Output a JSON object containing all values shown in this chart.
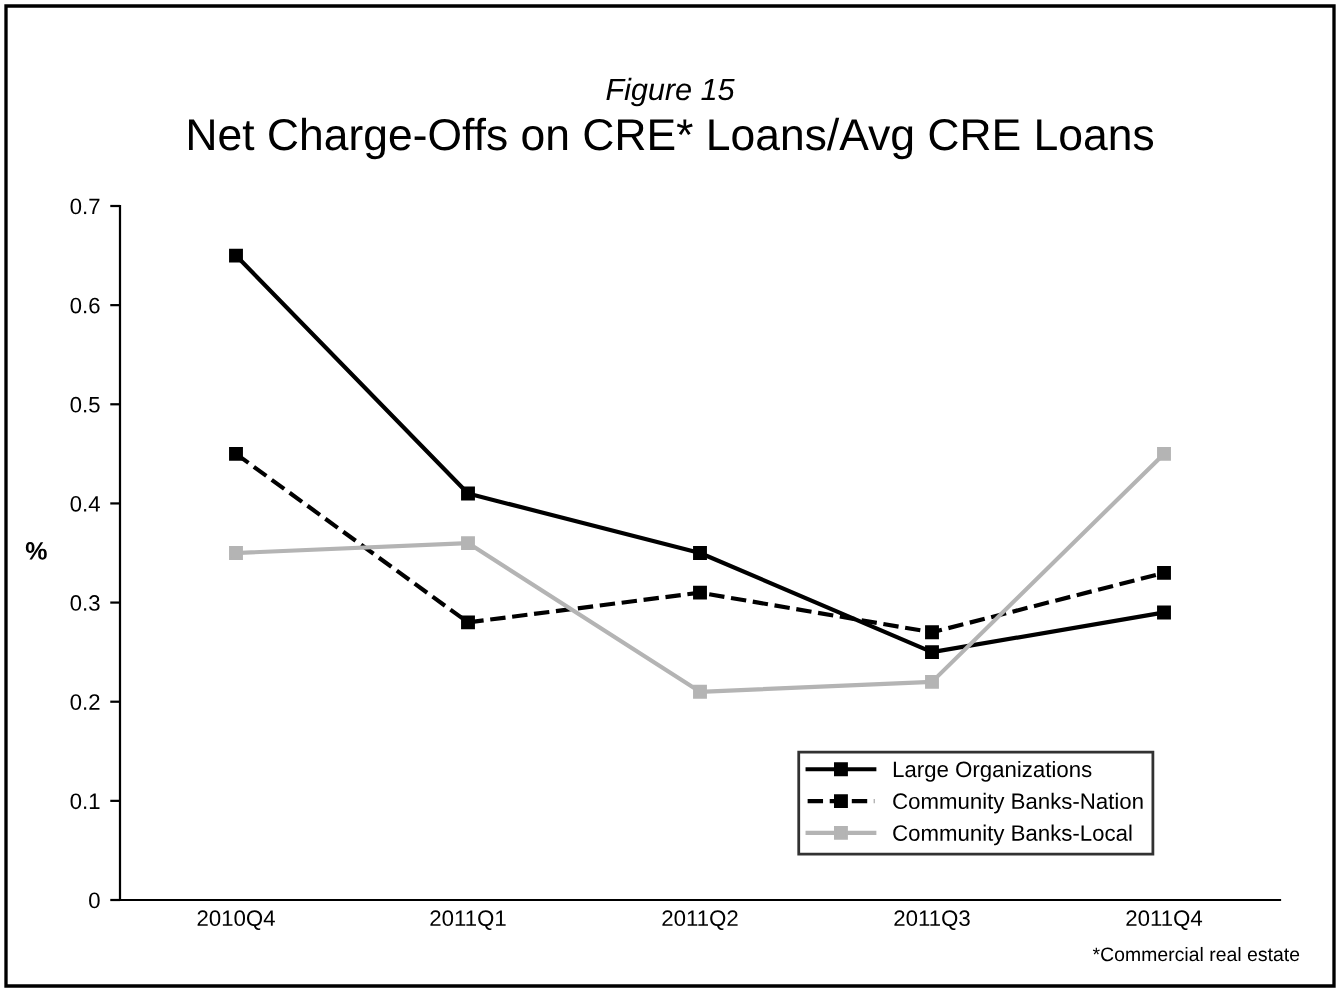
{
  "chart_data": {
    "type": "line",
    "subtitle": "Figure 15",
    "title": "Net Charge-Offs on CRE* Loans/Avg CRE Loans",
    "ylabel": "%",
    "categories": [
      "2010Q4",
      "2011Q1",
      "2011Q2",
      "2011Q3",
      "2011Q4"
    ],
    "series": [
      {
        "name": "Large Organizations",
        "color": "#000000",
        "line_style": "solid",
        "values": [
          0.65,
          0.41,
          0.35,
          0.25,
          0.29
        ]
      },
      {
        "name": "Community Banks-Nation",
        "color": "#000000",
        "line_style": "dashed",
        "values": [
          0.45,
          0.28,
          0.31,
          0.27,
          0.33
        ]
      },
      {
        "name": "Community Banks-Local",
        "color": "#b4b4b4",
        "line_style": "solid",
        "values": [
          0.35,
          0.36,
          0.21,
          0.22,
          0.45
        ]
      }
    ],
    "marker": "square",
    "ylim": [
      0,
      0.7
    ],
    "yticks": [
      0,
      0.1,
      0.2,
      0.3,
      0.4,
      0.5,
      0.6,
      0.7
    ],
    "grid": false,
    "legend": "bottom right",
    "annotations": [
      "*Commercial real estate"
    ]
  }
}
